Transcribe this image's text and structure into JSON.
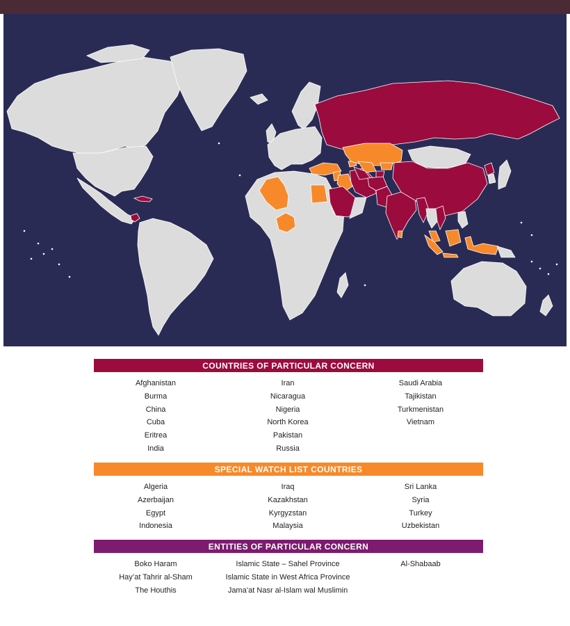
{
  "map": {
    "colors": {
      "ocean": "#2a2b55",
      "land": "#dcdcdc",
      "countries_of_particular_concern": "#9b0b3e",
      "special_watch_list": "#f7892b",
      "entities_of_particular_concern": "#7d1b6e"
    }
  },
  "sections": {
    "cpc": {
      "title": "COUNTRIES OF PARTICULAR CONCERN",
      "columns": [
        [
          "Afghanistan",
          "Burma",
          "China",
          "Cuba",
          "Eritrea",
          "India"
        ],
        [
          "Iran",
          "Nicaragua",
          "Nigeria",
          "North Korea",
          "Pakistan",
          "Russia"
        ],
        [
          "Saudi Arabia",
          "Tajikistan",
          "Turkmenistan",
          "Vietnam"
        ]
      ]
    },
    "swl": {
      "title": "SPECIAL WATCH LIST COUNTRIES",
      "columns": [
        [
          "Algeria",
          "Azerbaijan",
          "Egypt",
          "Indonesia"
        ],
        [
          "Iraq",
          "Kazakhstan",
          "Kyrgyzstan",
          "Malaysia"
        ],
        [
          "Sri Lanka",
          "Syria",
          "Turkey",
          "Uzbekistan"
        ]
      ]
    },
    "epc": {
      "title": "ENTITIES OF PARTICULAR CONCERN",
      "columns": [
        [
          "Boko Haram",
          "Hay’at Tahrir al-Sham",
          "The Houthis"
        ],
        [
          "Islamic State – Sahel Province",
          "Islamic State in West Africa Province",
          "Jama’at Nasr al-Islam wal Muslimin"
        ],
        [
          "Al-Shabaab"
        ]
      ]
    }
  }
}
